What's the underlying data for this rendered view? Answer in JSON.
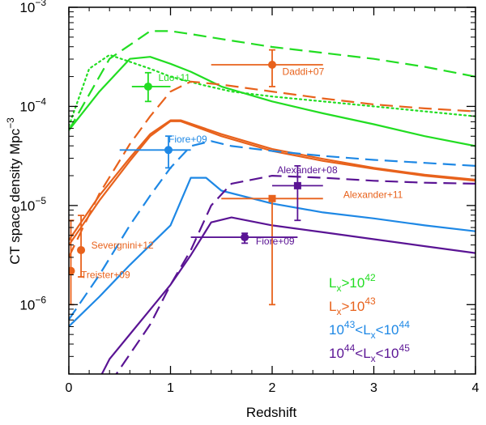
{
  "chart_data": {
    "type": "line",
    "xlabel": "Redshift",
    "ylabel": "CT space density Mpc",
    "ylabel_sup": "−3",
    "xlim": [
      0,
      4
    ],
    "ylim_log10": [
      -6.7,
      -3
    ],
    "x_ticks": [
      {
        "value": 0,
        "label": "0"
      },
      {
        "value": 1,
        "label": "1"
      },
      {
        "value": 2,
        "label": "2"
      },
      {
        "value": 3,
        "label": "3"
      },
      {
        "value": 4,
        "label": "4"
      }
    ],
    "y_ticks": [
      {
        "exp": -6,
        "base": "10",
        "sup": "−6"
      },
      {
        "exp": -5,
        "base": "10",
        "sup": "−5"
      },
      {
        "exp": -4,
        "base": "10",
        "sup": "−4"
      },
      {
        "exp": -3,
        "base": "10",
        "sup": "−3"
      }
    ],
    "colors": {
      "green": "#22dd22",
      "orange": "#e8621c",
      "blue": "#1e88e5",
      "purple": "#5a1494"
    },
    "series": [
      {
        "name": "green-dashed",
        "color": "green",
        "style": "dashed",
        "x": [
          0,
          0.4,
          0.8,
          1.0,
          1.2,
          1.5,
          2.0,
          2.5,
          3.0,
          3.5,
          4.0
        ],
        "log10_y": [
          -4.24,
          -3.52,
          -3.24,
          -3.24,
          -3.27,
          -3.32,
          -3.4,
          -3.46,
          -3.52,
          -3.6,
          -3.7
        ]
      },
      {
        "name": "green-solid",
        "color": "green",
        "style": "solid",
        "x": [
          0,
          0.3,
          0.6,
          0.8,
          1.0,
          1.2,
          1.5,
          2.0,
          2.5,
          3.0,
          3.5,
          4.0
        ],
        "log10_y": [
          -4.24,
          -3.85,
          -3.52,
          -3.5,
          -3.57,
          -3.65,
          -3.8,
          -3.95,
          -4.07,
          -4.18,
          -4.3,
          -4.4
        ]
      },
      {
        "name": "green-dotted",
        "color": "green",
        "style": "dotted",
        "x": [
          0,
          0.2,
          0.4,
          0.6,
          0.8,
          1.0,
          1.3,
          1.6,
          2.0,
          2.5,
          3.0,
          3.5,
          4.0
        ],
        "log10_y": [
          -4.2,
          -3.62,
          -3.48,
          -3.55,
          -3.62,
          -3.7,
          -3.78,
          -3.85,
          -3.9,
          -3.95,
          -4.0,
          -4.05,
          -4.1
        ]
      },
      {
        "name": "orange-dashed",
        "color": "orange",
        "style": "dashed",
        "x": [
          0,
          0.3,
          0.6,
          0.8,
          1.0,
          1.2,
          1.5,
          2.0,
          2.5,
          3.0,
          3.5,
          4.0
        ],
        "log10_y": [
          -5.52,
          -4.88,
          -4.38,
          -4.1,
          -3.85,
          -3.75,
          -3.78,
          -3.85,
          -3.92,
          -3.98,
          -4.02,
          -4.05
        ]
      },
      {
        "name": "orange-solid",
        "color": "orange",
        "style": "solid",
        "x": [
          0,
          0.3,
          0.6,
          0.8,
          1.0,
          1.1,
          1.5,
          2.0,
          2.5,
          3.0,
          3.5,
          4.0
        ],
        "log10_y": [
          -5.4,
          -4.95,
          -4.55,
          -4.3,
          -4.15,
          -4.15,
          -4.3,
          -4.45,
          -4.55,
          -4.63,
          -4.7,
          -4.75
        ]
      },
      {
        "name": "orange-solid-upper",
        "color": "orange",
        "style": "solid",
        "x": [
          0,
          0.3,
          0.6,
          0.8,
          1.0,
          1.1,
          1.5,
          2.0,
          2.5,
          3.0,
          3.5,
          4.0
        ],
        "log10_y": [
          -5.35,
          -4.9,
          -4.52,
          -4.28,
          -4.14,
          -4.14,
          -4.28,
          -4.43,
          -4.53,
          -4.62,
          -4.69,
          -4.74
        ]
      },
      {
        "name": "blue-dashed",
        "color": "blue",
        "style": "dashed",
        "x": [
          0,
          0.3,
          0.6,
          0.8,
          1.0,
          1.2,
          1.4,
          1.6,
          2.0,
          2.5,
          3.0,
          3.5,
          4.0
        ],
        "log10_y": [
          -6.15,
          -5.7,
          -5.2,
          -4.9,
          -4.62,
          -4.4,
          -4.35,
          -4.4,
          -4.45,
          -4.5,
          -4.54,
          -4.57,
          -4.6
        ]
      },
      {
        "name": "blue-solid",
        "color": "blue",
        "style": "solid",
        "x": [
          0,
          0.3,
          0.6,
          0.8,
          1.0,
          1.2,
          1.35,
          1.5,
          2.0,
          2.5,
          3.0,
          3.5,
          4.0
        ],
        "log10_y": [
          -6.22,
          -5.92,
          -5.6,
          -5.4,
          -5.2,
          -4.72,
          -4.72,
          -4.85,
          -4.98,
          -5.07,
          -5.13,
          -5.2,
          -5.26
        ]
      },
      {
        "name": "purple-dashed",
        "color": "purple",
        "style": "dashed",
        "x": [
          0.3,
          0.5,
          0.8,
          1.0,
          1.2,
          1.4,
          1.6,
          2.0,
          2.5,
          3.0,
          3.5,
          4.0
        ],
        "log10_y": [
          -6.95,
          -6.65,
          -6.2,
          -5.8,
          -5.45,
          -5.0,
          -4.78,
          -4.7,
          -4.72,
          -4.75,
          -4.77,
          -4.78
        ]
      },
      {
        "name": "purple-solid",
        "color": "purple",
        "style": "solid",
        "x": [
          0.2,
          0.4,
          0.6,
          0.8,
          1.0,
          1.2,
          1.4,
          1.6,
          2.0,
          2.5,
          3.0,
          3.5,
          4.0
        ],
        "log10_y": [
          -6.95,
          -6.55,
          -6.3,
          -6.05,
          -5.8,
          -5.5,
          -5.17,
          -5.12,
          -5.2,
          -5.27,
          -5.34,
          -5.41,
          -5.48
        ]
      }
    ],
    "points": [
      {
        "label": "Luo+11",
        "color": "green",
        "marker": "circle",
        "x": 0.78,
        "log10_y": -3.8,
        "xerr": [
          0.62,
          1.0
        ],
        "log10_yerr": [
          -3.95,
          -3.66
        ],
        "label_at": [
          0.88,
          -3.71
        ],
        "anchor": "start"
      },
      {
        "label": "Daddi+07",
        "color": "orange",
        "marker": "circle",
        "x": 2.0,
        "log10_y": -3.58,
        "xerr": [
          1.4,
          2.5
        ],
        "log10_yerr": [
          -3.8,
          -3.43
        ],
        "label_at": [
          2.1,
          -3.65
        ],
        "anchor": "start"
      },
      {
        "label": "Fiore+09",
        "color": "blue",
        "marker": "circle",
        "x": 0.98,
        "log10_y": -4.44,
        "xerr": [
          0.5,
          1.2
        ],
        "log10_yerr": [
          -4.62,
          -4.3
        ],
        "label_at": [
          0.98,
          -4.33
        ],
        "anchor": "start"
      },
      {
        "label": "Severgnini+12",
        "color": "orange",
        "marker": "circle",
        "x": 0.12,
        "log10_y": -5.45,
        "xerr": [
          0.12,
          0.12
        ],
        "log10_yerr": [
          -5.72,
          -5.1
        ],
        "label_at": [
          0.22,
          -5.4
        ],
        "anchor": "start"
      },
      {
        "label": "Treister+09",
        "color": "orange",
        "marker": "circle",
        "x": 0.02,
        "log10_y": -5.66,
        "xerr": [
          0.02,
          0.02
        ],
        "log10_yerr": [
          -6.0,
          -5.15
        ],
        "label_at": [
          0.12,
          -5.7
        ],
        "anchor": "start"
      },
      {
        "label": "Alexander+11",
        "color": "orange",
        "marker": "square",
        "x": 2.0,
        "log10_y": -4.93,
        "xerr": [
          1.5,
          2.5
        ],
        "log10_yerr": [
          -6.0,
          -4.92
        ],
        "label_at": [
          2.7,
          -4.89
        ],
        "anchor": "start"
      },
      {
        "label": "Alexander+08",
        "color": "purple",
        "marker": "square",
        "x": 2.25,
        "log10_y": -4.8,
        "xerr": [
          2.0,
          2.5
        ],
        "log10_yerr": [
          -5.15,
          -4.6
        ],
        "label_at": [
          2.05,
          -4.64
        ],
        "anchor": "start"
      },
      {
        "label": "Fiore+09",
        "color": "purple",
        "marker": "circle",
        "x": 1.73,
        "log10_y": -5.32,
        "xerr": [
          1.2,
          2.25
        ],
        "log10_yerr": [
          -5.38,
          -5.28
        ],
        "label_at": [
          1.84,
          -5.36
        ],
        "anchor": "start"
      }
    ],
    "legend": {
      "placement": "bottom-right",
      "entries": [
        {
          "color": "green",
          "parts": [
            {
              "t": "L"
            },
            {
              "t": "x",
              "sub": true
            },
            {
              "t": ">10"
            },
            {
              "t": "42",
              "sup": true
            }
          ]
        },
        {
          "color": "orange",
          "parts": [
            {
              "t": "L"
            },
            {
              "t": "x",
              "sub": true
            },
            {
              "t": ">10"
            },
            {
              "t": "43",
              "sup": true
            }
          ]
        },
        {
          "color": "blue",
          "parts": [
            {
              "t": "10"
            },
            {
              "t": "43",
              "sup": true
            },
            {
              "t": "<L"
            },
            {
              "t": "x",
              "sub": true
            },
            {
              "t": "<10"
            },
            {
              "t": "44",
              "sup": true
            }
          ]
        },
        {
          "color": "purple",
          "parts": [
            {
              "t": "10"
            },
            {
              "t": "44",
              "sup": true
            },
            {
              "t": "<L"
            },
            {
              "t": "x",
              "sub": true
            },
            {
              "t": "<10"
            },
            {
              "t": "45",
              "sup": true
            }
          ]
        }
      ]
    }
  }
}
